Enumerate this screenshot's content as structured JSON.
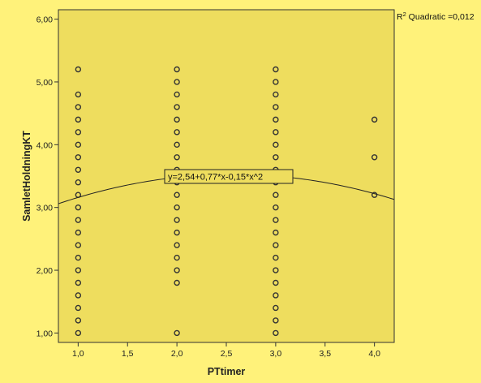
{
  "chart_data": {
    "type": "scatter",
    "xlabel": "PTtimer",
    "ylabel": "SamletHoldningKT",
    "xlim": [
      0.8,
      4.2
    ],
    "ylim": [
      0.85,
      6.15
    ],
    "x_ticks": [
      "1,0",
      "1,5",
      "2,0",
      "2,5",
      "3,0",
      "3,5",
      "4,0"
    ],
    "y_ticks": [
      "1,00",
      "2,00",
      "3,00",
      "4,00",
      "5,00",
      "6,00"
    ],
    "grid": false,
    "colors": {
      "background": "#FFF27A",
      "plot_area": "#EEDD5E",
      "markers": "#333333",
      "fit_line": "#222222"
    },
    "points": [
      {
        "x": 1,
        "y": 1.0
      },
      {
        "x": 1,
        "y": 1.2
      },
      {
        "x": 1,
        "y": 1.4
      },
      {
        "x": 1,
        "y": 1.6
      },
      {
        "x": 1,
        "y": 1.8
      },
      {
        "x": 1,
        "y": 2.0
      },
      {
        "x": 1,
        "y": 2.2
      },
      {
        "x": 1,
        "y": 2.4
      },
      {
        "x": 1,
        "y": 2.6
      },
      {
        "x": 1,
        "y": 2.8
      },
      {
        "x": 1,
        "y": 3.0
      },
      {
        "x": 1,
        "y": 3.2
      },
      {
        "x": 1,
        "y": 3.4
      },
      {
        "x": 1,
        "y": 3.6
      },
      {
        "x": 1,
        "y": 3.8
      },
      {
        "x": 1,
        "y": 4.0
      },
      {
        "x": 1,
        "y": 4.2
      },
      {
        "x": 1,
        "y": 4.4
      },
      {
        "x": 1,
        "y": 4.6
      },
      {
        "x": 1,
        "y": 4.8
      },
      {
        "x": 1,
        "y": 5.2
      },
      {
        "x": 2,
        "y": 1.0
      },
      {
        "x": 2,
        "y": 1.8
      },
      {
        "x": 2,
        "y": 2.0
      },
      {
        "x": 2,
        "y": 2.2
      },
      {
        "x": 2,
        "y": 2.4
      },
      {
        "x": 2,
        "y": 2.6
      },
      {
        "x": 2,
        "y": 2.8
      },
      {
        "x": 2,
        "y": 3.0
      },
      {
        "x": 2,
        "y": 3.2
      },
      {
        "x": 2,
        "y": 3.4
      },
      {
        "x": 2,
        "y": 3.6
      },
      {
        "x": 2,
        "y": 3.8
      },
      {
        "x": 2,
        "y": 4.0
      },
      {
        "x": 2,
        "y": 4.2
      },
      {
        "x": 2,
        "y": 4.4
      },
      {
        "x": 2,
        "y": 4.6
      },
      {
        "x": 2,
        "y": 4.8
      },
      {
        "x": 2,
        "y": 5.0
      },
      {
        "x": 2,
        "y": 5.2
      },
      {
        "x": 3,
        "y": 1.0
      },
      {
        "x": 3,
        "y": 1.2
      },
      {
        "x": 3,
        "y": 1.4
      },
      {
        "x": 3,
        "y": 1.6
      },
      {
        "x": 3,
        "y": 1.8
      },
      {
        "x": 3,
        "y": 2.0
      },
      {
        "x": 3,
        "y": 2.2
      },
      {
        "x": 3,
        "y": 2.4
      },
      {
        "x": 3,
        "y": 2.6
      },
      {
        "x": 3,
        "y": 2.8
      },
      {
        "x": 3,
        "y": 3.0
      },
      {
        "x": 3,
        "y": 3.2
      },
      {
        "x": 3,
        "y": 3.4
      },
      {
        "x": 3,
        "y": 3.6
      },
      {
        "x": 3,
        "y": 3.8
      },
      {
        "x": 3,
        "y": 4.0
      },
      {
        "x": 3,
        "y": 4.2
      },
      {
        "x": 3,
        "y": 4.4
      },
      {
        "x": 3,
        "y": 4.6
      },
      {
        "x": 3,
        "y": 4.8
      },
      {
        "x": 3,
        "y": 5.0
      },
      {
        "x": 3,
        "y": 5.2
      },
      {
        "x": 4,
        "y": 3.2
      },
      {
        "x": 4,
        "y": 3.8
      },
      {
        "x": 4,
        "y": 4.4
      }
    ],
    "fit": {
      "type": "quadratic",
      "coefficients": [
        2.54,
        0.77,
        -0.15
      ],
      "equation_label": "y=2,54+0,77*x-0,15*x^2",
      "r2_label_prefix": "R",
      "r2_label_superscript": "2",
      "r2_label_suffix": " Quadratic =0,012"
    }
  }
}
